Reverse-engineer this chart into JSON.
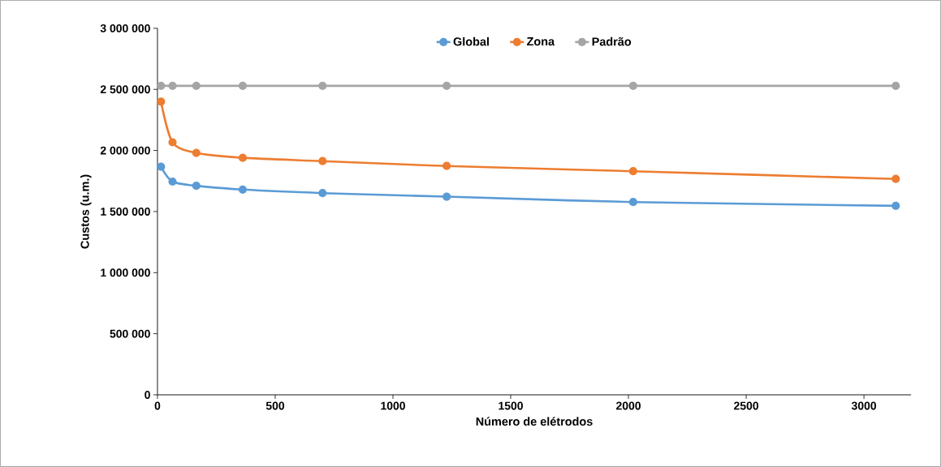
{
  "chart_data": {
    "type": "line",
    "xlabel": "Número de elétrodos",
    "ylabel": "Custos (u.m.)",
    "x": [
      15,
      64,
      165,
      362,
      701,
      1228,
      2020,
      3135
    ],
    "series": [
      {
        "name": "Global",
        "color": "#5b9bd5",
        "values": [
          1867000,
          1745000,
          1711000,
          1680000,
          1651000,
          1622000,
          1578000,
          1547000
        ]
      },
      {
        "name": "Zona",
        "color": "#ed7d31",
        "values": [
          2400000,
          2067000,
          1980000,
          1940000,
          1913000,
          1873000,
          1830000,
          1767000
        ]
      },
      {
        "name": "Padrão",
        "color": "#a5a5a5",
        "values": [
          2529000,
          2529000,
          2529000,
          2529000,
          2529000,
          2529000,
          2529000,
          2529000
        ]
      }
    ],
    "xlim": [
      0,
      3200
    ],
    "xticks": [
      0,
      500,
      1000,
      1500,
      2000,
      2500,
      3000
    ],
    "ylim": [
      0,
      3000000
    ],
    "yticks": [
      0,
      {
        "value": 500000,
        "label": "500 000"
      },
      {
        "value": 1000000,
        "label": "1 000 000"
      },
      {
        "value": 1500000,
        "label": "1 500 000"
      },
      {
        "value": 2000000,
        "label": "2 000 000"
      },
      {
        "value": 2500000,
        "label": "2 500 000"
      },
      {
        "value": 3000000,
        "label": "3 000 000"
      }
    ],
    "grid": false,
    "legend": "top",
    "marker": "circle",
    "line_style": "solid"
  }
}
